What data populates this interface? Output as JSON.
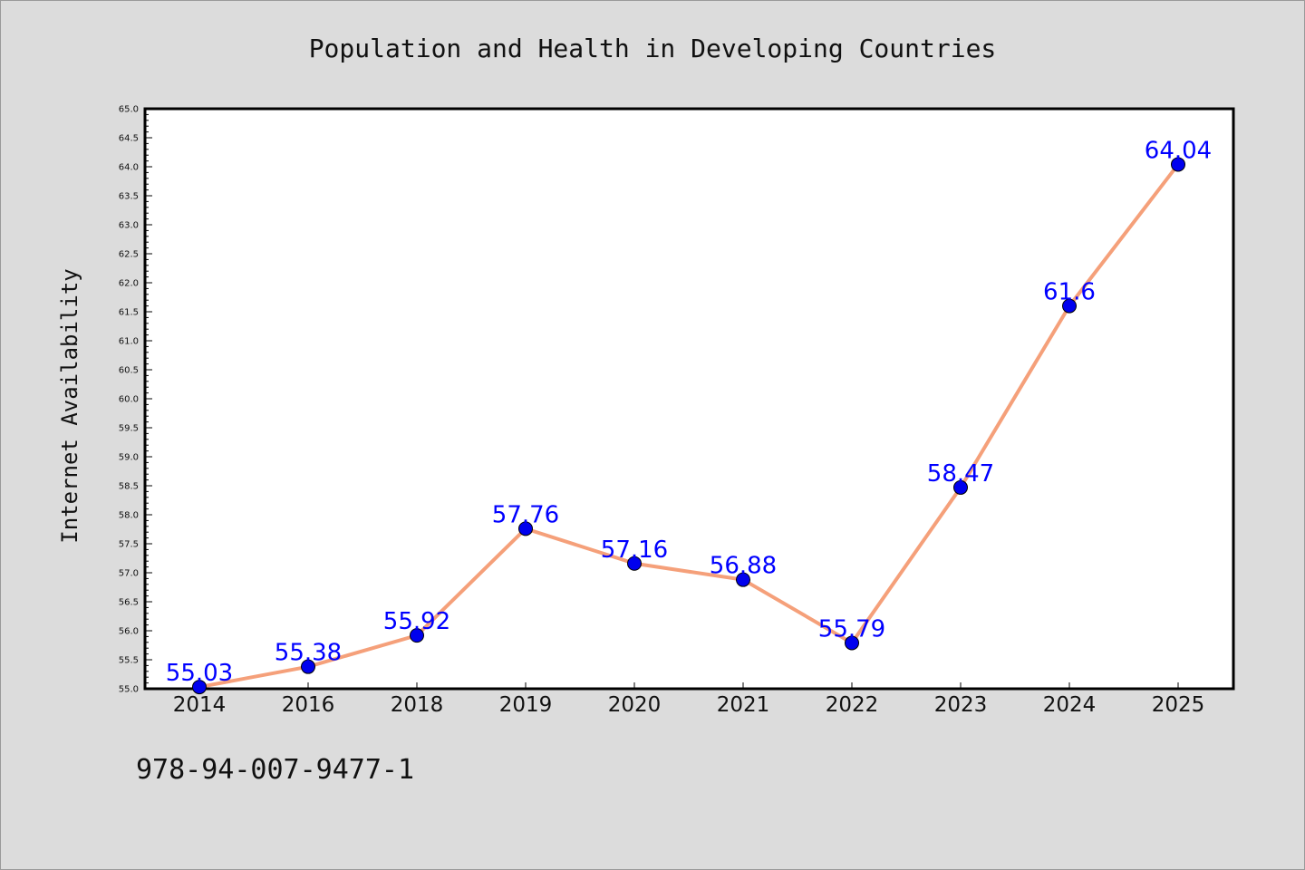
{
  "chart_data": {
    "type": "line",
    "title": "Population and Health in Developing Countries",
    "xlabel": "",
    "ylabel": "Internet Availability",
    "categories": [
      "2014",
      "2016",
      "2018",
      "2019",
      "2020",
      "2021",
      "2022",
      "2023",
      "2024",
      "2025"
    ],
    "series": [
      {
        "values": [
          55.03,
          55.38,
          55.92,
          57.76,
          57.16,
          56.88,
          55.79,
          58.47,
          61.6,
          64.04
        ],
        "data_labels": [
          "55.03",
          "55.38",
          "55.92",
          "57.76",
          "57.16",
          "56.88",
          "55.79",
          "58.47",
          "61.6",
          "64.04"
        ],
        "line_color": "#f5a07a",
        "marker_color": "#0000ee"
      }
    ],
    "ylim": [
      55.0,
      65.0
    ],
    "yticks": [
      "55.0",
      "55.5",
      "56.0",
      "56.5",
      "57.0",
      "57.5",
      "58.0",
      "58.5",
      "59.0",
      "59.5",
      "60.0",
      "60.5",
      "61.0",
      "61.5",
      "62.0",
      "62.5",
      "63.0",
      "63.5",
      "64.0",
      "64.5",
      "65.0"
    ],
    "grid": false,
    "label_color": "#0000ff"
  },
  "footer": {
    "isbn": "978-94-007-9477-1"
  }
}
